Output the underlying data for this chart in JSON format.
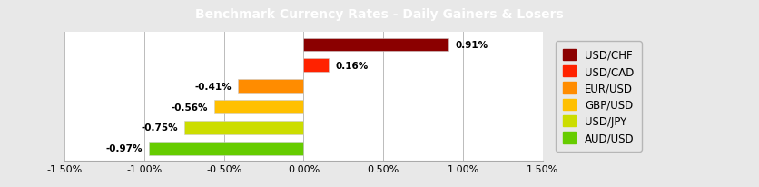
{
  "title": "Benchmark Currency Rates - Daily Gainers & Losers",
  "title_bg": "#808080",
  "title_color": "white",
  "categories": [
    "USD/CHF",
    "USD/CAD",
    "EUR/USD",
    "GBP/USD",
    "USD/JPY",
    "AUD/USD"
  ],
  "values": [
    0.91,
    0.16,
    -0.41,
    -0.56,
    -0.75,
    -0.97
  ],
  "colors": [
    "#8B0000",
    "#FF2200",
    "#FF8C00",
    "#FFC000",
    "#CCDD00",
    "#66CC00"
  ],
  "labels": [
    "0.91%",
    "0.16%",
    "-0.41%",
    "-0.56%",
    "-0.75%",
    "-0.97%"
  ],
  "xlim": [
    -1.5,
    1.5
  ],
  "xticks": [
    -1.5,
    -1.0,
    -0.5,
    0.0,
    0.5,
    1.0,
    1.5
  ],
  "xtick_labels": [
    "-1.50%",
    "-1.00%",
    "-0.50%",
    "0.00%",
    "0.50%",
    "1.00%",
    "1.50%"
  ],
  "bg_color": "#E8E8E8",
  "plot_bg": "#FFFFFF",
  "bar_height": 0.65,
  "label_fontsize": 7.5,
  "tick_fontsize": 8,
  "title_fontsize": 10,
  "legend_fontsize": 8.5
}
